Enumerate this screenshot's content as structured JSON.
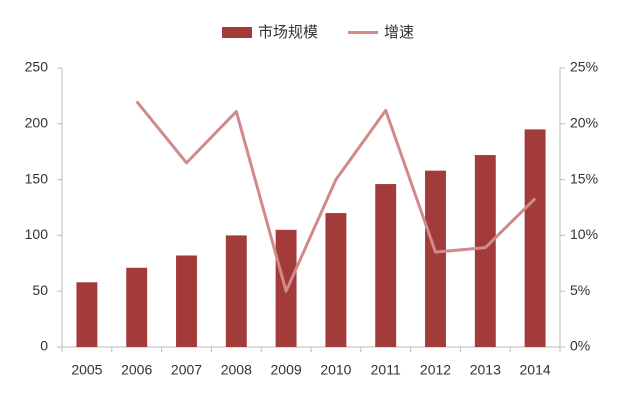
{
  "chart_data": {
    "type": "bar",
    "categories": [
      "2005",
      "2006",
      "2007",
      "2008",
      "2009",
      "2010",
      "2011",
      "2012",
      "2013",
      "2014"
    ],
    "series": [
      {
        "name": "市场规模",
        "color": "#a33b3b",
        "values": [
          58,
          71,
          82,
          100,
          105,
          120,
          146,
          158,
          172,
          195
        ]
      },
      {
        "name": "增速",
        "type": "line",
        "axis": "y2",
        "color": "#d08a8a",
        "values": [
          null,
          22.0,
          16.5,
          21.1,
          5.0,
          15.0,
          21.2,
          8.5,
          8.9,
          13.3
        ]
      }
    ],
    "ylim": [
      0,
      250
    ],
    "yticks": [
      0,
      50,
      100,
      150,
      200,
      250
    ],
    "y2lim": [
      0,
      25
    ],
    "y2ticks": [
      {
        "value": 0,
        "label": "0%"
      },
      {
        "value": 5,
        "label": "5%"
      },
      {
        "value": 10,
        "label": "10%"
      },
      {
        "value": 15,
        "label": "15%"
      },
      {
        "value": 20,
        "label": "20%"
      },
      {
        "value": 25,
        "label": "25%"
      }
    ],
    "legend": "top"
  }
}
